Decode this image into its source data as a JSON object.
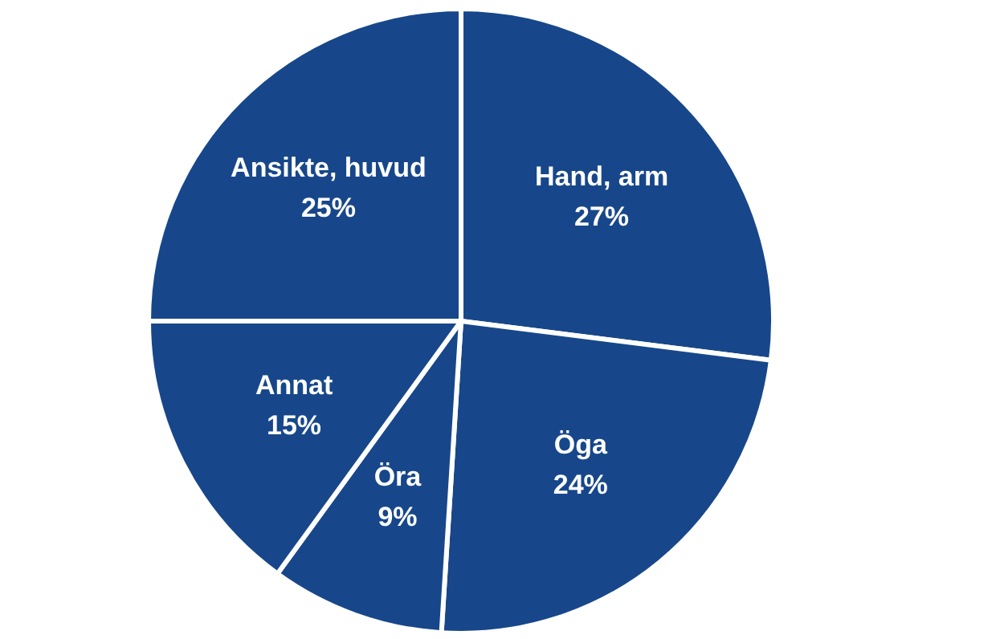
{
  "chart_data": {
    "type": "pie",
    "categories": [
      "Hand, arm",
      "Öga",
      "Öra",
      "Annat",
      "Ansikte, huvud"
    ],
    "values": [
      27,
      24,
      9,
      15,
      25
    ],
    "colors": [
      "#17478a",
      "#17478a",
      "#17478a",
      "#17478a",
      "#17478a"
    ],
    "value_labels": [
      "27%",
      "24%",
      "9%",
      "15%",
      "25%"
    ],
    "legend": false
  }
}
